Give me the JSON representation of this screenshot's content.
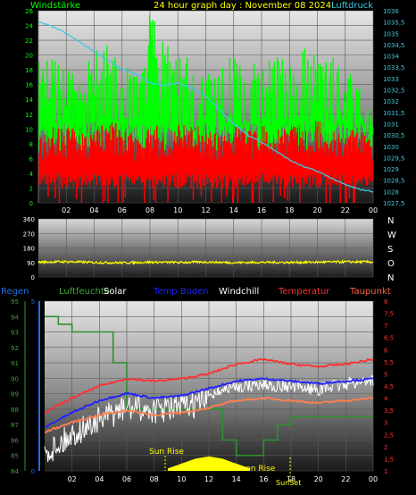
{
  "header": {
    "title": "24 hour graph day : November 08 2024",
    "left_label": "Windstärke",
    "right_label": "Luftdruck"
  },
  "direction_letters": [
    "N",
    "W",
    "S",
    "O",
    "N"
  ],
  "legend": [
    {
      "label": "Regen",
      "color": "#1c6fe0"
    },
    {
      "label": "Luftfeuchte",
      "color": "#3fa535"
    },
    {
      "label": "Solar",
      "color": "#ffffff"
    },
    {
      "label": "Temp Boden",
      "color": "#2020ff"
    },
    {
      "label": "Windchill",
      "color": "#ffffff"
    },
    {
      "label": "Temperatur",
      "color": "#ff3030"
    },
    {
      "label": "Taupunkt",
      "color": "#ff6040"
    }
  ],
  "annotations": {
    "sun_rise": "Sun Rise",
    "moon_rise": "Moon Rise",
    "sun_set": "SunSet"
  },
  "chart_data": [
    {
      "type": "line",
      "title": "24 hour graph day : November 08 2024",
      "x_ticks": [
        "02",
        "04",
        "06",
        "08",
        "10",
        "12",
        "14",
        "16",
        "18",
        "20",
        "22",
        "00"
      ],
      "y_left": {
        "label": "Windstärke",
        "ticks": [
          0,
          2,
          4,
          6,
          8,
          10,
          12,
          14,
          16,
          18,
          20,
          22,
          24,
          26
        ],
        "range": [
          0,
          26
        ]
      },
      "y_right": {
        "label": "Luftdruck",
        "ticks": [
          "1027,5",
          "1028",
          "1028,5",
          "1029",
          "1029,5",
          "1030",
          "1030,5",
          "1031",
          "1031,5",
          "1032",
          "1032,5",
          "1033",
          "1033,5",
          "1034",
          "1034,5",
          "1035",
          "1035,5",
          "1036"
        ],
        "range": [
          1027.5,
          1036
        ]
      },
      "series": [
        {
          "name": "Luftdruck",
          "color": "#40c8e0",
          "x": [
            0,
            1,
            2,
            3,
            4,
            5,
            6,
            7,
            8,
            9,
            10,
            11,
            12,
            13,
            14,
            15,
            16,
            17,
            18,
            19,
            20,
            21,
            22,
            23,
            24
          ],
          "values": [
            1035.5,
            1035.3,
            1035.0,
            1034.6,
            1034.2,
            1033.8,
            1033.4,
            1033.2,
            1032.8,
            1032.7,
            1032.8,
            1032.6,
            1032.2,
            1031.6,
            1031.0,
            1030.5,
            1030.2,
            1029.8,
            1029.4,
            1029.1,
            1028.9,
            1028.6,
            1028.3,
            1028.1,
            1028.0
          ]
        },
        {
          "name": "Windstärke",
          "color": "#00ff00",
          "x": [
            0,
            1,
            2,
            3,
            4,
            5,
            6,
            7,
            8,
            9,
            10,
            11,
            12,
            13,
            14,
            15,
            16,
            17,
            18,
            19,
            20,
            21,
            22,
            23,
            24
          ],
          "values": [
            20,
            21,
            18,
            17,
            21,
            22,
            18,
            19,
            26,
            22,
            21,
            20,
            20,
            18,
            21,
            19,
            21,
            20,
            19,
            21,
            20,
            22,
            18,
            17,
            12
          ]
        },
        {
          "name": "",
          "color": "#ff0000",
          "x": [
            0,
            1,
            2,
            3,
            4,
            5,
            6,
            7,
            8,
            9,
            10,
            11,
            12,
            13,
            14,
            15,
            16,
            17,
            18,
            19,
            20,
            21,
            22,
            23,
            24
          ],
          "values": [
            9,
            10,
            10,
            9,
            10,
            11,
            10,
            9,
            10,
            10,
            11,
            10,
            10,
            9,
            10,
            10,
            10,
            10,
            11,
            10,
            11,
            10,
            9,
            10,
            8
          ]
        }
      ]
    },
    {
      "type": "line",
      "y_ticks": [
        0,
        90,
        180,
        270,
        360
      ],
      "y_range": [
        0,
        360
      ],
      "series": [
        {
          "name": "",
          "color": "#ffff00",
          "x": [
            0,
            2,
            4,
            6,
            8,
            10,
            12,
            14,
            16,
            18,
            20,
            22,
            24
          ],
          "values": [
            92,
            95,
            90,
            88,
            92,
            90,
            93,
            89,
            91,
            90,
            92,
            94,
            93
          ]
        }
      ]
    },
    {
      "type": "line",
      "x_ticks": [
        "02",
        "04",
        "06",
        "08",
        "10",
        "12",
        "14",
        "16",
        "18",
        "20",
        "22",
        "00"
      ],
      "y_left": {
        "label": "Luftfeuchte",
        "ticks": [
          84,
          85,
          86,
          87,
          88,
          89,
          90,
          91,
          92,
          93,
          94,
          95
        ],
        "range": [
          84,
          95
        ]
      },
      "y_right": {
        "ticks": [
          "1",
          "1,5",
          "2",
          "2,5",
          "3",
          "3,5",
          "4",
          "4,5",
          "5",
          "5,5",
          "6",
          "6,5",
          "7",
          "7,5",
          "8"
        ],
        "range": [
          1,
          8
        ]
      },
      "y_rain": {
        "ticks": [
          0,
          5
        ],
        "range": [
          0,
          5
        ]
      },
      "series": [
        {
          "name": "Luftfeuchte",
          "color": "#2f8f2f",
          "x": [
            0,
            1,
            1,
            2,
            2,
            5,
            5,
            6,
            6,
            13,
            13,
            14,
            14,
            16,
            16,
            17,
            17,
            18,
            18,
            24
          ],
          "values": [
            94,
            94,
            93.5,
            93.5,
            93,
            93,
            91,
            91,
            88,
            88,
            86,
            86,
            85,
            85,
            86,
            86,
            87,
            87,
            87.5,
            87.5
          ]
        },
        {
          "name": "Temperatur",
          "color": "#ff3030",
          "x": [
            0,
            2,
            4,
            6,
            8,
            10,
            12,
            14,
            16,
            18,
            20,
            22,
            24
          ],
          "values": [
            3.4,
            4.0,
            4.5,
            4.8,
            4.7,
            4.8,
            5.0,
            5.4,
            5.6,
            5.4,
            5.3,
            5.4,
            5.6
          ]
        },
        {
          "name": "Temp Boden",
          "color": "#2020ff",
          "x": [
            0,
            2,
            4,
            6,
            8,
            10,
            12,
            14,
            16,
            18,
            20,
            22,
            24
          ],
          "values": [
            2.8,
            3.4,
            3.9,
            4.2,
            4.0,
            4.1,
            4.4,
            4.7,
            4.8,
            4.7,
            4.6,
            4.7,
            4.8
          ]
        },
        {
          "name": "Taupunkt",
          "color": "#ff7f50",
          "x": [
            0,
            2,
            4,
            6,
            8,
            10,
            12,
            14,
            16,
            18,
            20,
            22,
            24
          ],
          "values": [
            2.6,
            3.0,
            3.3,
            3.5,
            3.3,
            3.4,
            3.6,
            3.9,
            4.0,
            3.9,
            3.8,
            3.9,
            4.0
          ]
        },
        {
          "name": "Windchill",
          "color": "#ffffff",
          "x": [
            0,
            2,
            4,
            6,
            8,
            10,
            12,
            14,
            16,
            18,
            20,
            22,
            24
          ],
          "values": [
            2.0,
            2.8,
            3.4,
            3.9,
            3.8,
            3.9,
            4.2,
            4.5,
            4.6,
            4.5,
            4.4,
            4.6,
            4.8
          ]
        },
        {
          "name": "Solar",
          "color": "#ffff00",
          "x": [
            9,
            10,
            11,
            12,
            13,
            14,
            15
          ],
          "values": [
            0.1,
            0.3,
            0.5,
            0.6,
            0.5,
            0.3,
            0.1
          ]
        }
      ]
    }
  ]
}
